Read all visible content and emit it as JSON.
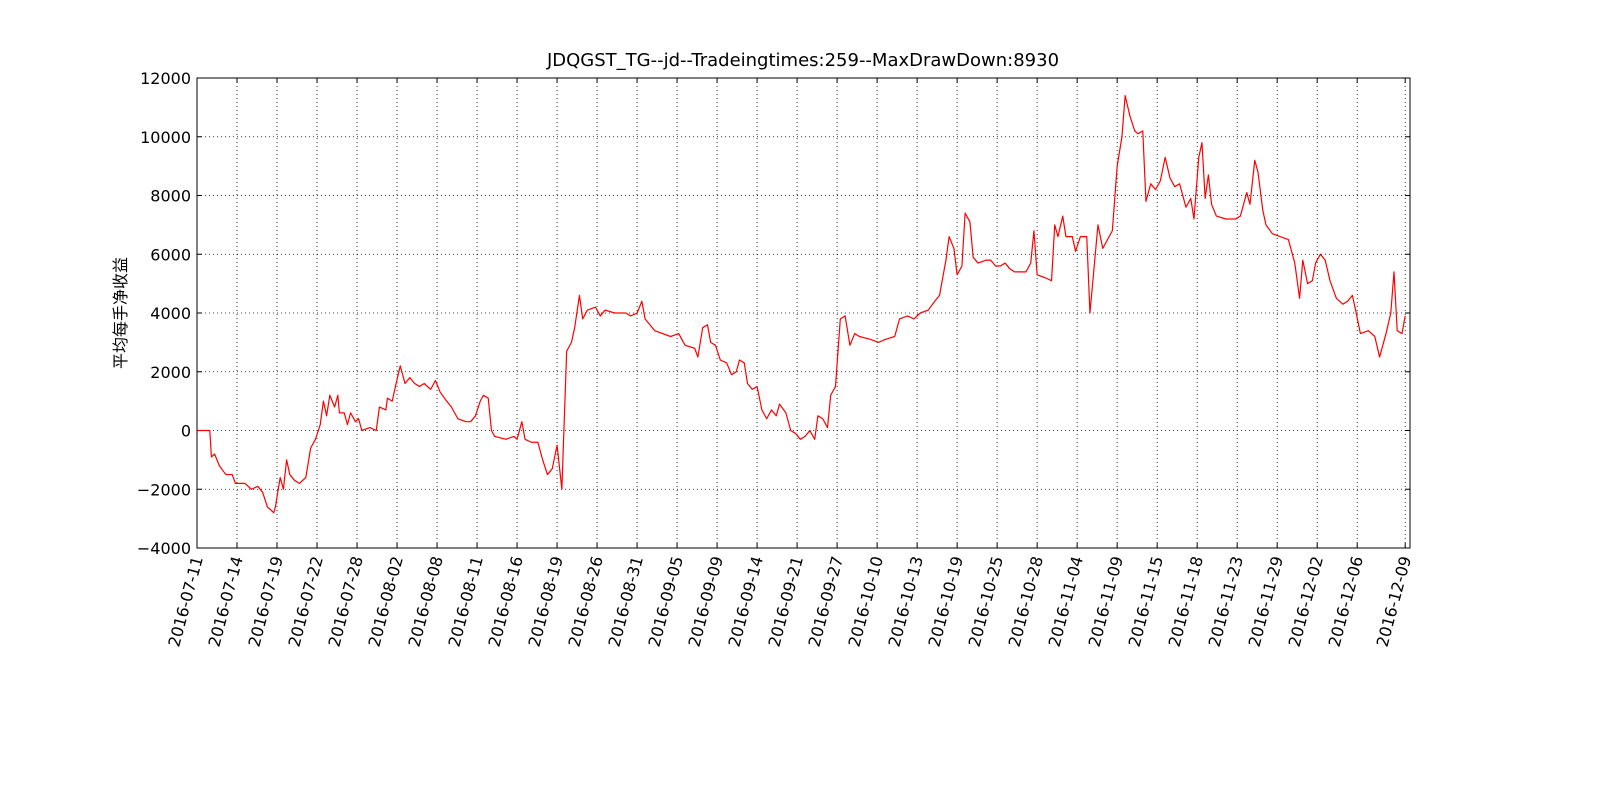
{
  "chart_data": {
    "type": "line",
    "title": "JDQGST_TG--jd--Tradeingtimes:259--MaxDrawDown:8930",
    "y_label": "平均每手净收益",
    "color": "#ff0000",
    "grid": true,
    "xlim": [
      0,
      758
    ],
    "ylim": [
      -4000,
      12000
    ],
    "yticks": [
      {
        "value": -4000,
        "label": "−4000"
      },
      {
        "value": -2000,
        "label": "−2000"
      },
      0,
      2000,
      4000,
      6000,
      8000,
      10000,
      12000
    ],
    "xticks": [
      {
        "value": 0,
        "label": "2016-07-11"
      },
      {
        "value": 25,
        "label": "2016-07-14"
      },
      {
        "value": 50,
        "label": "2016-07-19"
      },
      {
        "value": 75,
        "label": "2016-07-22"
      },
      {
        "value": 100,
        "label": "2016-07-28"
      },
      {
        "value": 125,
        "label": "2016-08-02"
      },
      {
        "value": 150,
        "label": "2016-08-08"
      },
      {
        "value": 175,
        "label": "2016-08-11"
      },
      {
        "value": 200,
        "label": "2016-08-16"
      },
      {
        "value": 225,
        "label": "2016-08-19"
      },
      {
        "value": 250,
        "label": "2016-08-26"
      },
      {
        "value": 275,
        "label": "2016-08-31"
      },
      {
        "value": 300,
        "label": "2016-09-05"
      },
      {
        "value": 325,
        "label": "2016-09-09"
      },
      {
        "value": 350,
        "label": "2016-09-14"
      },
      {
        "value": 375,
        "label": "2016-09-21"
      },
      {
        "value": 400,
        "label": "2016-09-27"
      },
      {
        "value": 425,
        "label": "2016-10-10"
      },
      {
        "value": 450,
        "label": "2016-10-13"
      },
      {
        "value": 475,
        "label": "2016-10-19"
      },
      {
        "value": 500,
        "label": "2016-10-25"
      },
      {
        "value": 525,
        "label": "2016-10-28"
      },
      {
        "value": 550,
        "label": "2016-11-04"
      },
      {
        "value": 575,
        "label": "2016-11-09"
      },
      {
        "value": 600,
        "label": "2016-11-15"
      },
      {
        "value": 625,
        "label": "2016-11-18"
      },
      {
        "value": 650,
        "label": "2016-11-23"
      },
      {
        "value": 675,
        "label": "2016-11-29"
      },
      {
        "value": 700,
        "label": "2016-12-02"
      },
      {
        "value": 725,
        "label": "2016-12-06"
      },
      {
        "value": 755,
        "label": "2016-12-09"
      }
    ],
    "x": [
      0,
      8,
      9,
      11,
      14,
      18,
      22,
      24,
      30,
      34,
      38,
      41,
      44,
      48,
      49,
      52,
      54,
      56,
      58,
      61,
      64,
      68,
      71,
      74,
      77,
      79,
      81,
      83,
      86,
      88,
      89,
      92,
      94,
      96,
      99,
      101,
      103,
      108,
      112,
      114,
      118,
      119,
      122,
      124,
      127,
      130,
      133,
      136,
      139,
      142,
      146,
      149,
      152,
      156,
      159,
      163,
      168,
      171,
      174,
      177,
      179,
      182,
      184,
      186,
      193,
      198,
      200,
      203,
      205,
      209,
      213,
      216,
      219,
      222,
      225,
      228,
      231,
      234,
      236,
      239,
      241,
      244,
      249,
      252,
      255,
      261,
      268,
      271,
      275,
      278,
      280,
      286,
      296,
      301,
      305,
      311,
      313,
      316,
      319,
      321,
      324,
      327,
      331,
      334,
      337,
      339,
      342,
      344,
      347,
      350,
      353,
      356,
      359,
      362,
      364,
      368,
      371,
      374,
      377,
      380,
      383,
      386,
      388,
      391,
      394,
      396,
      399,
      402,
      405,
      408,
      411,
      414,
      421,
      426,
      430,
      436,
      439,
      444,
      448,
      452,
      457,
      461,
      464,
      468,
      470,
      473,
      475,
      478,
      480,
      483,
      485,
      488,
      493,
      496,
      499,
      502,
      505,
      508,
      511,
      514,
      518,
      521,
      523,
      525,
      530,
      534,
      536,
      538,
      541,
      543,
      547,
      549,
      552,
      556,
      558,
      561,
      563,
      566,
      569,
      572,
      575,
      578,
      580,
      583,
      586,
      588,
      591,
      593,
      596,
      599,
      602,
      605,
      608,
      611,
      614,
      618,
      621,
      623,
      626,
      628,
      630,
      632,
      634,
      637,
      643,
      649,
      652,
      656,
      658,
      661,
      663,
      666,
      668,
      672,
      677,
      682,
      686,
      689,
      691,
      694,
      697,
      699,
      702,
      705,
      708,
      712,
      716,
      719,
      722,
      724,
      727,
      732,
      736,
      739,
      743,
      746,
      748,
      750,
      753,
      755
    ],
    "values": [
      0,
      0,
      -900,
      -800,
      -1200,
      -1500,
      -1500,
      -1800,
      -1800,
      -2000,
      -1900,
      -2100,
      -2600,
      -2800,
      -2600,
      -1600,
      -2000,
      -1000,
      -1500,
      -1700,
      -1800,
      -1600,
      -600,
      -300,
      200,
      1000,
      500,
      1200,
      800,
      1200,
      600,
      600,
      200,
      600,
      300,
      400,
      0,
      100,
      0,
      800,
      700,
      1100,
      1000,
      1500,
      2200,
      1600,
      1800,
      1600,
      1500,
      1600,
      1400,
      1700,
      1300,
      1000,
      800,
      400,
      300,
      300,
      500,
      1000,
      1200,
      1100,
      0,
      -200,
      -300,
      -200,
      -300,
      300,
      -300,
      -400,
      -400,
      -1000,
      -1500,
      -1300,
      -500,
      -2000,
      2700,
      3000,
      3500,
      4600,
      3800,
      4100,
      4200,
      3900,
      4100,
      4000,
      4000,
      3900,
      4000,
      4400,
      3800,
      3400,
      3200,
      3300,
      2900,
      2800,
      2500,
      3500,
      3600,
      3000,
      2900,
      2400,
      2300,
      1900,
      2000,
      2400,
      2300,
      1600,
      1400,
      1500,
      700,
      400,
      700,
      500,
      900,
      600,
      0,
      -100,
      -300,
      -200,
      0,
      -300,
      500,
      400,
      100,
      1200,
      1500,
      3800,
      3900,
      2900,
      3300,
      3200,
      3100,
      3000,
      3100,
      3200,
      3800,
      3900,
      3800,
      4000,
      4100,
      4400,
      4600,
      5800,
      6600,
      6200,
      5300,
      5600,
      7400,
      7100,
      5900,
      5700,
      5800,
      5800,
      5600,
      5600,
      5700,
      5500,
      5400,
      5400,
      5400,
      5700,
      6800,
      5300,
      5200,
      5100,
      7000,
      6600,
      7300,
      6600,
      6600,
      6100,
      6600,
      6600,
      4000,
      5800,
      7000,
      6200,
      6500,
      6800,
      9000,
      10000,
      11400,
      10700,
      10200,
      10100,
      10200,
      7800,
      8400,
      8200,
      8500,
      9300,
      8600,
      8300,
      8400,
      7600,
      7900,
      7200,
      9300,
      9800,
      7900,
      8700,
      7700,
      7300,
      7200,
      7200,
      7300,
      8100,
      7700,
      9200,
      8800,
      7500,
      7000,
      6700,
      6600,
      6500,
      5700,
      4500,
      5800,
      5000,
      5100,
      5700,
      6000,
      5800,
      5100,
      4500,
      4300,
      4400,
      4600,
      4100,
      3300,
      3400,
      3200,
      2500,
      3300,
      4000,
      5400,
      3400,
      3300,
      3900
    ]
  }
}
